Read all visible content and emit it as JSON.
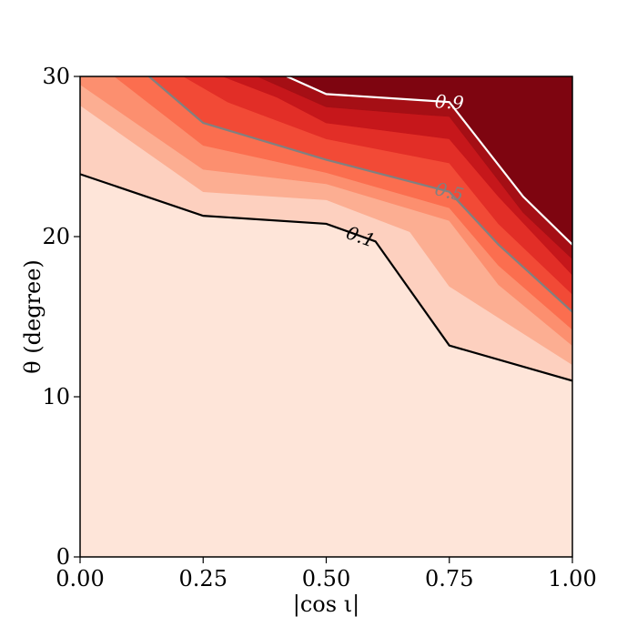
{
  "chart_data": {
    "type": "contour",
    "xlabel": "|cos ι|",
    "ylabel": "θ (degree)",
    "xlim": [
      0,
      1
    ],
    "ylim": [
      0,
      30
    ],
    "xticks": [
      "0.00",
      "0.25",
      "0.50",
      "0.75",
      "1.00"
    ],
    "yticks": [
      "0",
      "10",
      "20",
      "30"
    ],
    "grid": false,
    "colormap": "Reds",
    "filled_levels": [
      {
        "level": 0.1,
        "color": "#fee5d9",
        "boundary": []
      },
      {
        "level": 0.2,
        "color": "#fdd0bf",
        "boundary": [
          [
            0,
            23.9
          ],
          [
            0.25,
            21.3
          ],
          [
            0.5,
            20.8
          ],
          [
            0.6,
            19.7
          ],
          [
            0.75,
            13.2
          ],
          [
            1.0,
            11.0
          ]
        ]
      },
      {
        "level": 0.3,
        "color": "#fcae92",
        "boundary": [
          [
            0,
            28.2
          ],
          [
            0.25,
            22.8
          ],
          [
            0.5,
            22.3
          ],
          [
            0.67,
            20.3
          ],
          [
            0.75,
            16.9
          ],
          [
            1.0,
            12.0
          ]
        ]
      },
      {
        "level": 0.4,
        "color": "#fc8f6f",
        "boundary": [
          [
            0,
            29.5
          ],
          [
            0.25,
            24.2
          ],
          [
            0.5,
            23.3
          ],
          [
            0.75,
            21.0
          ],
          [
            0.85,
            17.0
          ],
          [
            1.0,
            13.2
          ]
        ]
      },
      {
        "level": 0.5,
        "color": "#fb6e4f",
        "boundary": [
          [
            0.07,
            30
          ],
          [
            0.25,
            25.7
          ],
          [
            0.5,
            24.0
          ],
          [
            0.75,
            21.8
          ],
          [
            0.85,
            18.2
          ],
          [
            1.0,
            14.2
          ]
        ]
      },
      {
        "level": 0.6,
        "color": "#f24a36",
        "boundary": [
          [
            0.14,
            30
          ],
          [
            0.25,
            27.1
          ],
          [
            0.5,
            24.8
          ],
          [
            0.75,
            22.8
          ],
          [
            0.85,
            19.5
          ],
          [
            1.0,
            15.3
          ]
        ]
      },
      {
        "level": 0.7,
        "color": "#e22e27",
        "boundary": [
          [
            0.21,
            30
          ],
          [
            0.3,
            28.4
          ],
          [
            0.5,
            26.1
          ],
          [
            0.75,
            24.6
          ],
          [
            0.85,
            20.8
          ],
          [
            1.0,
            16.4
          ]
        ]
      },
      {
        "level": 0.8,
        "color": "#c6171b",
        "boundary": [
          [
            0.29,
            30
          ],
          [
            0.4,
            28.7
          ],
          [
            0.5,
            27.1
          ],
          [
            0.75,
            26.1
          ],
          [
            0.85,
            22.5
          ],
          [
            1.0,
            17.6
          ]
        ]
      },
      {
        "level": 0.9,
        "color": "#a50f15",
        "boundary": [
          [
            0.36,
            30
          ],
          [
            0.5,
            28.1
          ],
          [
            0.7,
            27.6
          ],
          [
            0.75,
            27.5
          ],
          [
            0.9,
            21.5
          ],
          [
            1.0,
            18.6
          ]
        ]
      },
      {
        "level": 1.0,
        "color": "#7e0510",
        "boundary": [
          [
            0.42,
            30
          ],
          [
            0.5,
            28.9
          ],
          [
            0.7,
            28.5
          ],
          [
            0.75,
            28.4
          ],
          [
            0.9,
            22.5
          ],
          [
            1.0,
            19.5
          ]
        ]
      }
    ],
    "contour_lines": [
      {
        "label": "0.1",
        "color": "#000000",
        "points": [
          [
            0,
            23.9
          ],
          [
            0.25,
            21.3
          ],
          [
            0.5,
            20.8
          ],
          [
            0.6,
            19.7
          ],
          [
            0.75,
            13.2
          ],
          [
            1.0,
            11.0
          ]
        ],
        "label_at": [
          0.57,
          20.0
        ]
      },
      {
        "label": "0.5",
        "color": "#808080",
        "points": [
          [
            0.14,
            30
          ],
          [
            0.25,
            27.1
          ],
          [
            0.5,
            24.8
          ],
          [
            0.75,
            22.8
          ],
          [
            0.85,
            19.5
          ],
          [
            1.0,
            15.3
          ]
        ],
        "label_at": [
          0.75,
          22.8
        ]
      },
      {
        "label": "0.9",
        "color": "#ffffff",
        "points": [
          [
            0.42,
            30
          ],
          [
            0.5,
            28.9
          ],
          [
            0.7,
            28.5
          ],
          [
            0.75,
            28.4
          ],
          [
            0.9,
            22.5
          ],
          [
            1.0,
            19.5
          ]
        ],
        "label_at": [
          0.75,
          28.4
        ]
      }
    ]
  }
}
